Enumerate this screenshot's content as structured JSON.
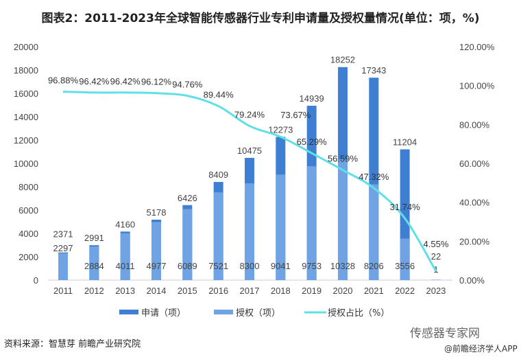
{
  "title": "图表2：2011-2023年全球智能传感器行业专利申请量及授权量情况(单位：项，%)",
  "source": "资料来源：智慧芽 前瞻产业研究院",
  "watermark": "传感器专家网",
  "watermark_sub": "@前瞻经济学人APP",
  "colors": {
    "application": "#3f7fd1",
    "grant": "#6fa3e3",
    "ratio": "#5fe0e8"
  },
  "chart_data": {
    "type": "bar+line",
    "categories": [
      "2011",
      "2012",
      "2013",
      "2014",
      "2015",
      "2016",
      "2017",
      "2018",
      "2019",
      "2020",
      "2021",
      "2022",
      "2023"
    ],
    "series": [
      {
        "name": "申请（项）",
        "type": "bar",
        "axis": "left",
        "values": [
          2371,
          2991,
          4160,
          5178,
          6426,
          8409,
          10475,
          12273,
          14939,
          18252,
          17343,
          11204,
          22
        ]
      },
      {
        "name": "授权（项）",
        "type": "bar",
        "axis": "left",
        "values": [
          2297,
          2884,
          4011,
          4977,
          6089,
          7521,
          8300,
          9041,
          9753,
          10328,
          8206,
          3556,
          1
        ]
      },
      {
        "name": "授权占比（%）",
        "type": "line",
        "axis": "right",
        "values": [
          96.88,
          96.42,
          96.42,
          96.12,
          94.76,
          89.44,
          79.24,
          73.67,
          65.29,
          56.59,
          47.32,
          31.74,
          4.55
        ]
      }
    ],
    "left_axis": {
      "ylim": [
        0,
        20000
      ],
      "ticks": [
        "0",
        "2000",
        "4000",
        "6000",
        "8000",
        "10000",
        "12000",
        "14000",
        "16000",
        "18000",
        "20000"
      ]
    },
    "right_axis": {
      "ylim": [
        0,
        120
      ],
      "ticks": [
        "0.00%",
        "20.00%",
        "40.00%",
        "60.00%",
        "80.00%",
        "100.00%",
        "120.00%"
      ]
    },
    "legend": "bottom",
    "grid": false
  }
}
